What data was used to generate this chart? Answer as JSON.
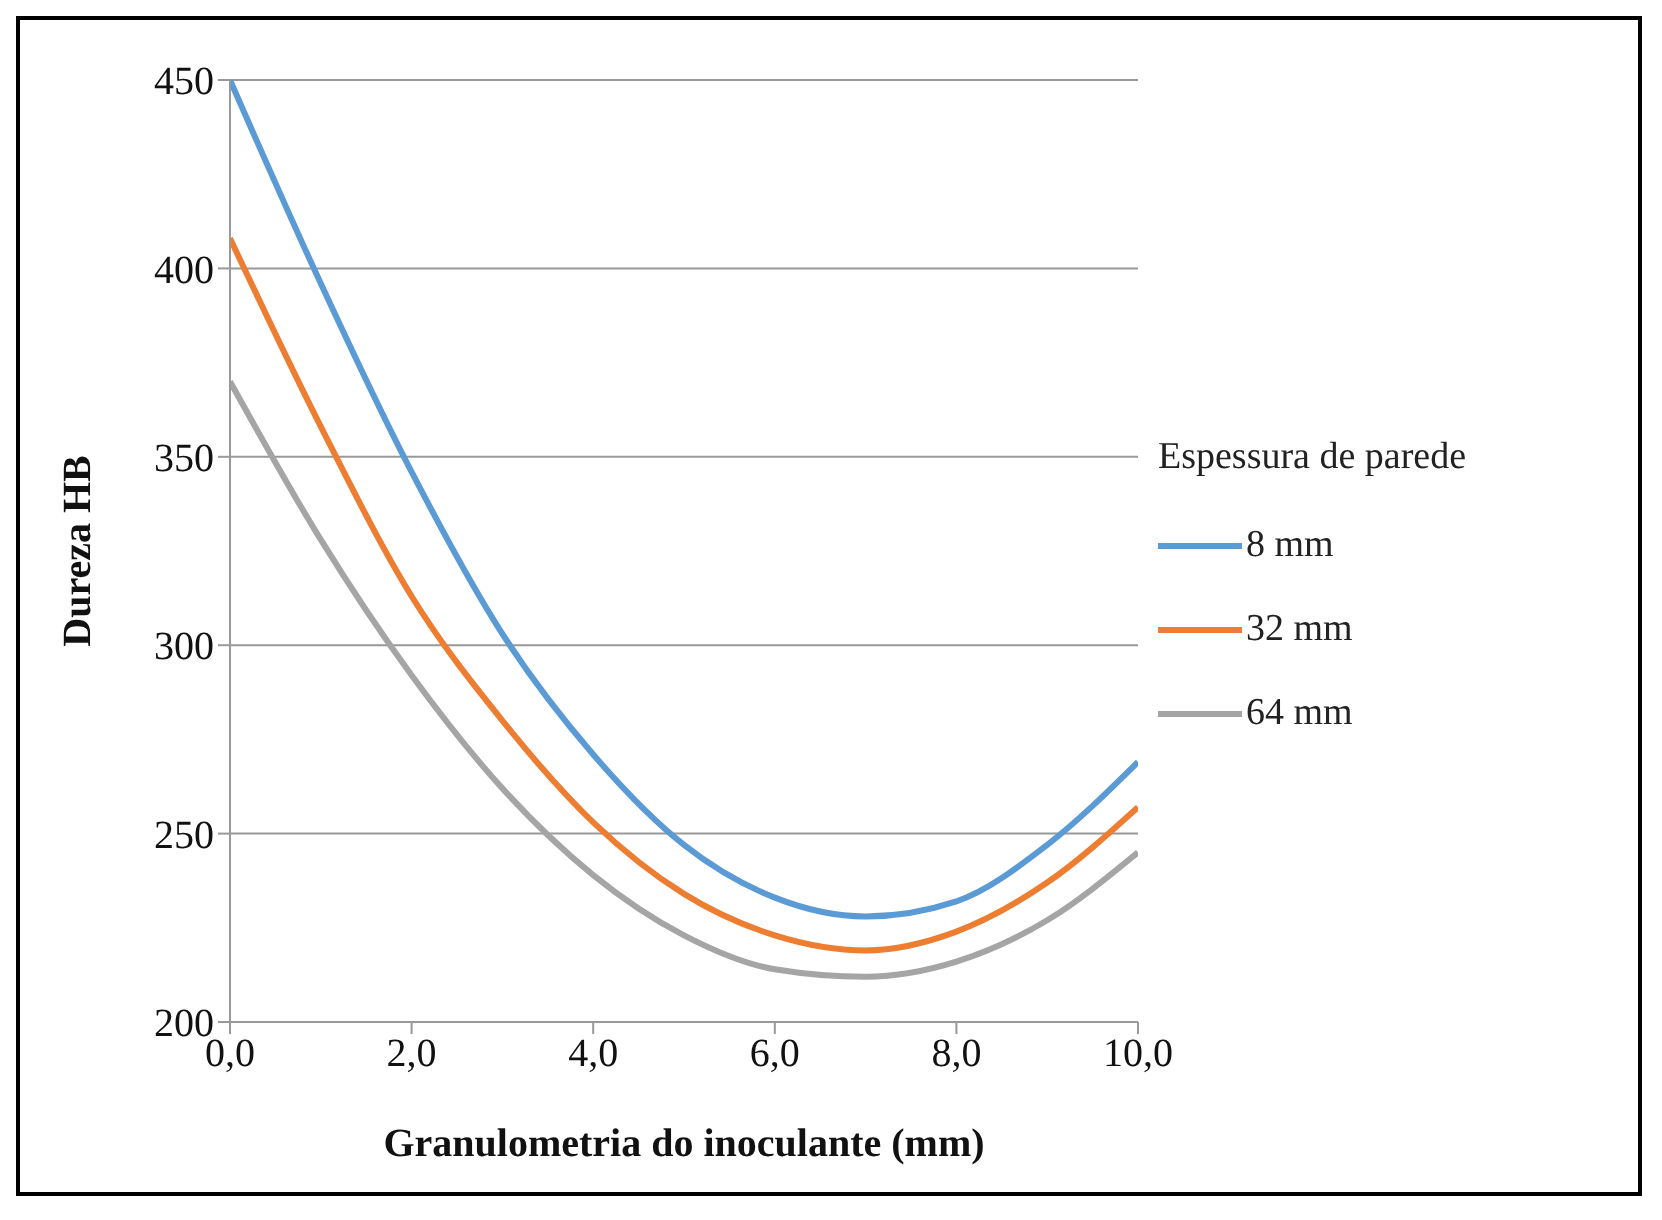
{
  "chart_data": {
    "type": "line",
    "xlabel": "Granulometria  do inoculante (mm)",
    "ylabel": "Dureza  HB",
    "legend_title": "Espessura de parede",
    "x": [
      0,
      1,
      2,
      3,
      4,
      5,
      6,
      7,
      8,
      9,
      10
    ],
    "series": [
      {
        "name": "8 mm",
        "color": "#5b9bd5",
        "values": [
          450,
          396,
          346,
          303,
          271,
          247,
          233,
          228,
          232,
          247,
          269
        ]
      },
      {
        "name": "32 mm",
        "color": "#ed7d31",
        "values": [
          408,
          358,
          313,
          280,
          253,
          234,
          223,
          219,
          224,
          237,
          257
        ]
      },
      {
        "name": "64 mm",
        "color": "#a5a5a5",
        "values": [
          370,
          328,
          292,
          262,
          239,
          223,
          214,
          212,
          216,
          227,
          245
        ]
      }
    ],
    "xlim": [
      0,
      10
    ],
    "xticks": [
      {
        "value": 0,
        "label": "0,0"
      },
      {
        "value": 2,
        "label": "2,0"
      },
      {
        "value": 4,
        "label": "4,0"
      },
      {
        "value": 6,
        "label": "6,0"
      },
      {
        "value": 8,
        "label": "8,0"
      },
      {
        "value": 10,
        "label": "10,0"
      }
    ],
    "ylim": [
      200,
      450
    ],
    "yticks": [
      200,
      250,
      300,
      350,
      400,
      450
    ],
    "grid": "y",
    "legend": "right",
    "marker": "none",
    "line_style": "solid"
  }
}
